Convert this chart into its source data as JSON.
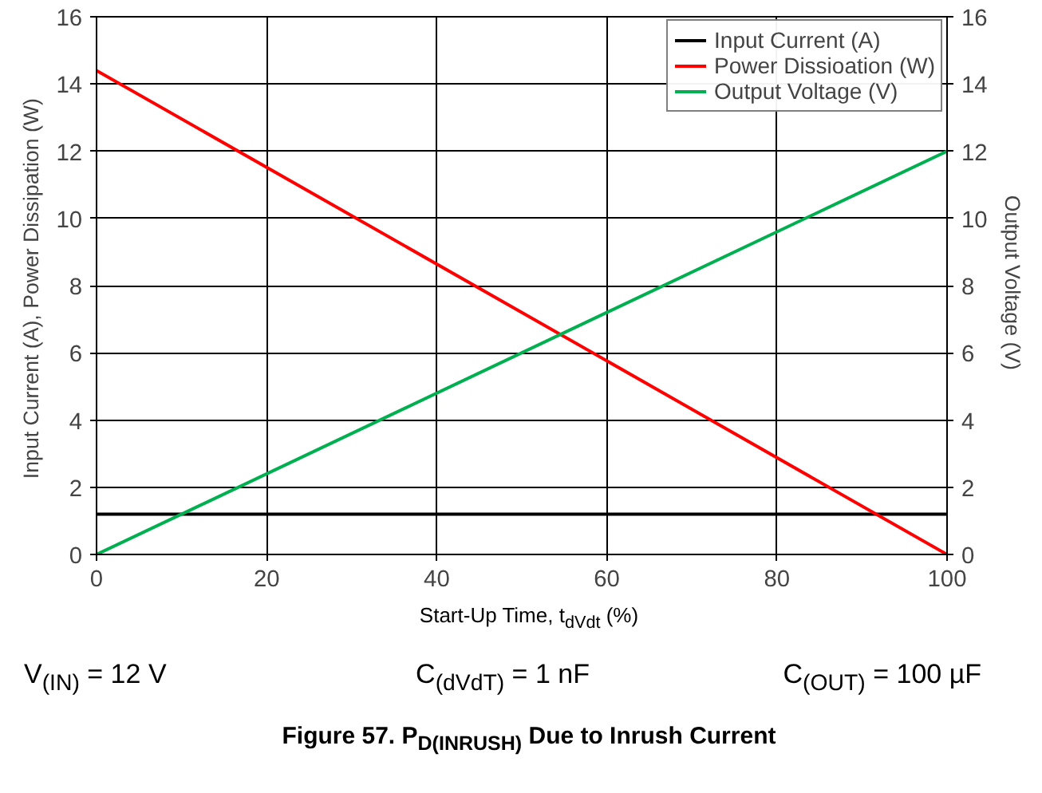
{
  "chart_data": {
    "type": "line",
    "title": "Figure 57. P$_{D(INRUSH)}$ Due to Inrush Current",
    "xlabel": "Start-Up Time, t$_{dVdt}$ (%)",
    "ylabel": "Input  Current (A), Power Dissipation (W)",
    "y2label": "Output Voltage  (V)",
    "x": [
      0,
      100
    ],
    "series": [
      {
        "name": "Input Current (A)",
        "color": "#000000",
        "values": [
          1.2,
          1.2
        ]
      },
      {
        "name": "Power Dissioation (W)",
        "color": "#ff0000",
        "values": [
          14.4,
          0
        ]
      },
      {
        "name": "Output Voltage (V)",
        "color": "#00b050",
        "values": [
          0,
          12
        ]
      }
    ],
    "xlim": [
      0,
      100
    ],
    "xticks": [
      0,
      20,
      40,
      60,
      80,
      100
    ],
    "ylim": [
      0,
      16
    ],
    "yticks": [
      0,
      2,
      4,
      6,
      8,
      10,
      12,
      14,
      16
    ],
    "y2lim": [
      0,
      16
    ],
    "y2ticks": [
      0,
      2,
      4,
      6,
      8,
      10,
      12,
      14,
      16
    ],
    "grid": true,
    "legend": "top right",
    "marker": "none",
    "line_style": "solid",
    "annotations": [
      "V$_{(IN)}$ = 12 V",
      "C$_{(dVdT)}$ = 1 nF",
      "C$_{(OUT)}$ = 100 µF"
    ]
  }
}
